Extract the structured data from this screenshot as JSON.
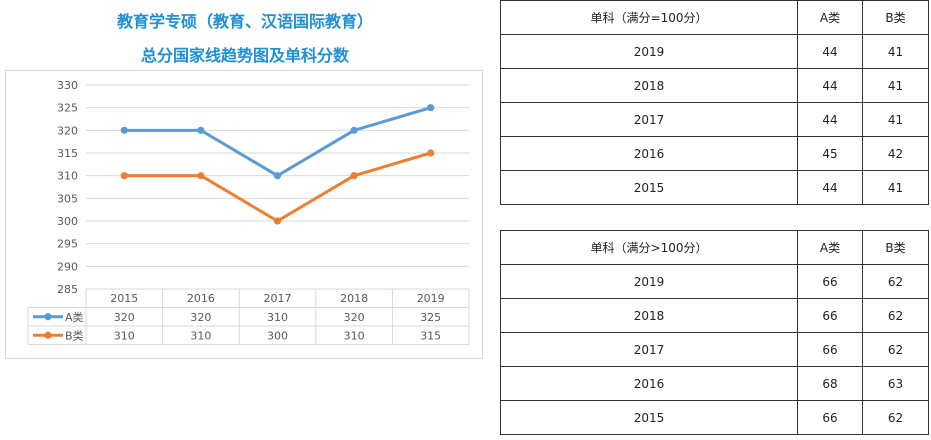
{
  "chart_data": {
    "type": "line",
    "title": "教育学专硕（教育、汉语国际教育）",
    "subtitle": "总分国家线趋势图及单科分数",
    "categories": [
      "2015",
      "2016",
      "2017",
      "2018",
      "2019"
    ],
    "series": [
      {
        "name": "A类",
        "values": [
          320,
          320,
          310,
          320,
          325
        ],
        "color": "#5b9bd5"
      },
      {
        "name": "B类",
        "values": [
          310,
          310,
          300,
          310,
          315
        ],
        "color": "#ed7d31"
      }
    ],
    "yticks": [
      "330",
      "325",
      "320",
      "315",
      "310",
      "305",
      "300",
      "295",
      "290",
      "285"
    ],
    "ylim": [
      285,
      330
    ],
    "grid": true,
    "legend": "data-table-below"
  },
  "table1": {
    "header": [
      "单科（满分=100分）",
      "A类",
      "B类"
    ],
    "rows": [
      [
        "2019",
        "44",
        "41"
      ],
      [
        "2018",
        "44",
        "41"
      ],
      [
        "2017",
        "44",
        "41"
      ],
      [
        "2016",
        "45",
        "42"
      ],
      [
        "2015",
        "44",
        "41"
      ]
    ]
  },
  "table2": {
    "header": [
      "单科（满分>100分）",
      "A类",
      "B类"
    ],
    "rows": [
      [
        "2019",
        "66",
        "62"
      ],
      [
        "2018",
        "66",
        "62"
      ],
      [
        "2017",
        "66",
        "62"
      ],
      [
        "2016",
        "68",
        "63"
      ],
      [
        "2015",
        "66",
        "62"
      ]
    ]
  }
}
